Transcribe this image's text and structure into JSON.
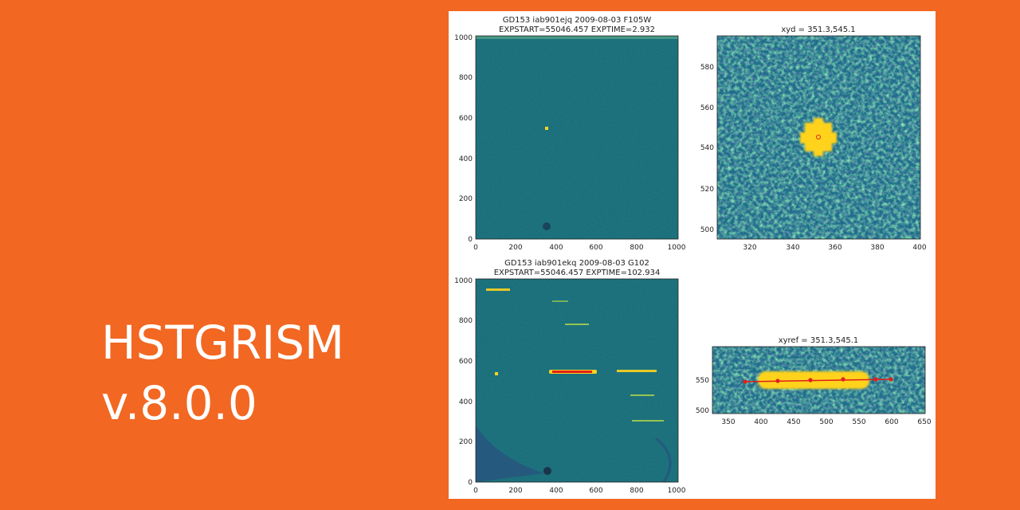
{
  "product": {
    "name": "HSTGRISM",
    "version": "v.8.0.0"
  },
  "colors": {
    "background": "#f26722",
    "text": "#ffffff",
    "panel": "#ffffff",
    "image_base": "#1f7a86",
    "source": "#ffd21f",
    "trace": "#e0201a"
  },
  "panels": {
    "top_left": {
      "title_1": "GD153 iab901ejq 2009-08-03 F105W",
      "title_2": "EXPSTART=55046.457 EXPTIME=2.932",
      "x_ticks": [
        "0",
        "200",
        "400",
        "600",
        "800",
        "1000"
      ],
      "y_ticks": [
        "0",
        "200",
        "400",
        "600",
        "800",
        "1000"
      ]
    },
    "top_right": {
      "title": "xyd = 351.3,545.1",
      "x_ticks": [
        "320",
        "340",
        "360",
        "380",
        "400"
      ],
      "y_ticks": [
        "500",
        "520",
        "540",
        "560",
        "580"
      ]
    },
    "bottom_left": {
      "title_1": "GD153 iab901ekq 2009-08-03 G102",
      "title_2": "EXPSTART=55046.457 EXPTIME=102.934",
      "x_ticks": [
        "0",
        "200",
        "400",
        "600",
        "800",
        "1000"
      ],
      "y_ticks": [
        "0",
        "200",
        "400",
        "600",
        "800",
        "1000"
      ]
    },
    "bottom_right": {
      "title": "xyref = 351.3,545.1",
      "x_ticks": [
        "350",
        "400",
        "450",
        "500",
        "550",
        "600",
        "650"
      ],
      "y_ticks": [
        "500",
        "550"
      ]
    }
  }
}
